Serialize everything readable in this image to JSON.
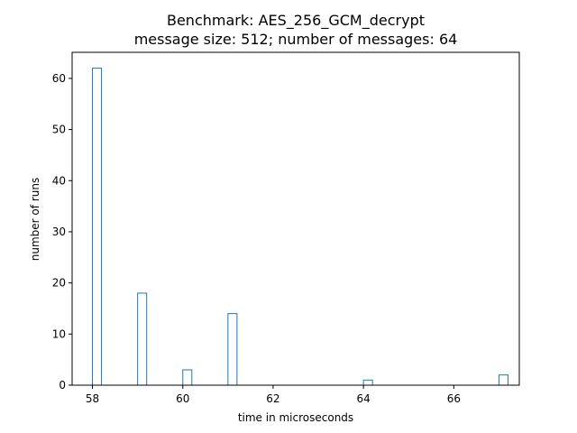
{
  "chart_data": {
    "type": "bar",
    "title_line1": "Benchmark: AES_256_GCM_decrypt",
    "title_line2": "message size: 512; number of messages: 64",
    "xlabel": "time in microseconds",
    "ylabel": "number of runs",
    "xlim": [
      57.55,
      67.45
    ],
    "ylim": [
      0,
      65.1
    ],
    "xticks": [
      58,
      60,
      62,
      64,
      66
    ],
    "yticks": [
      0,
      10,
      20,
      30,
      40,
      50,
      60
    ],
    "bin_width": 0.2,
    "bars": [
      {
        "x": 58,
        "value": 62
      },
      {
        "x": 59,
        "value": 18
      },
      {
        "x": 60,
        "value": 3
      },
      {
        "x": 61,
        "value": 14
      },
      {
        "x": 64,
        "value": 1
      },
      {
        "x": 67,
        "value": 2
      }
    ],
    "grid": false,
    "bar_color": "#1f77b4"
  }
}
